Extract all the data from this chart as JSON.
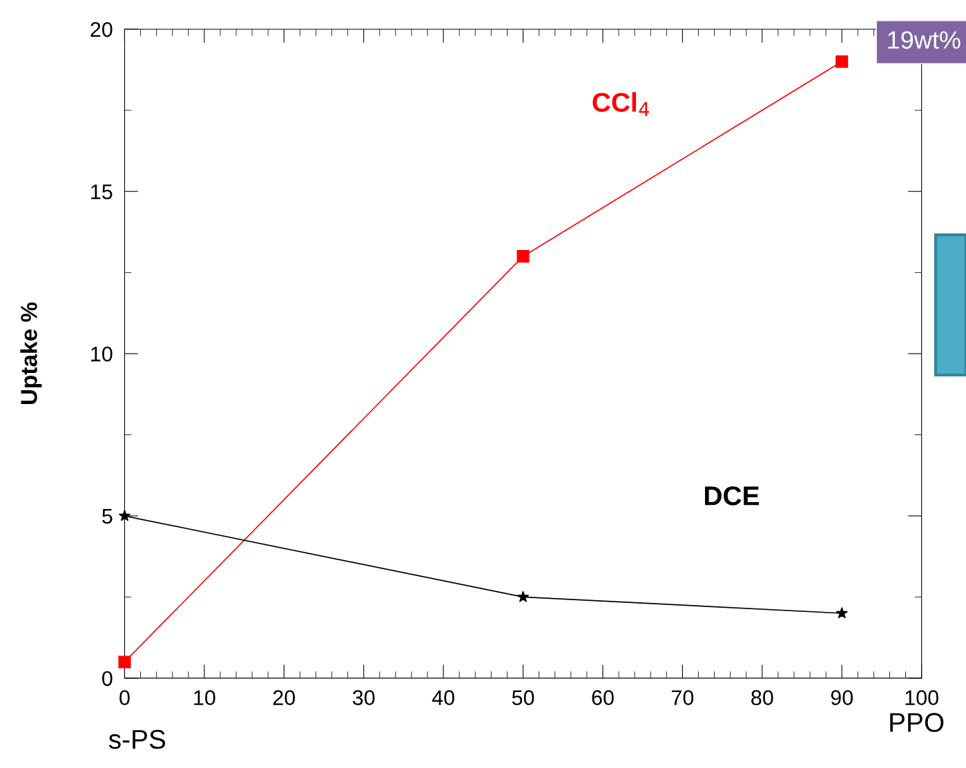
{
  "chart_data": {
    "type": "line",
    "ylabel": "Uptake %",
    "x": [
      0,
      50,
      90
    ],
    "series": [
      {
        "name": "CCl$_{4}$",
        "color": "#ff0000",
        "values": [
          0.5,
          13,
          19
        ],
        "marker": "square"
      },
      {
        "name": "DCE",
        "color": "#000000",
        "values": [
          5,
          2.5,
          2.0
        ],
        "marker": "star"
      }
    ],
    "xlim": [
      0,
      100
    ],
    "xticks": [
      0,
      10,
      20,
      30,
      40,
      50,
      60,
      70,
      80,
      90,
      100
    ],
    "ylim": [
      0,
      20
    ],
    "yticks": [
      0,
      5,
      10,
      15,
      20
    ],
    "grid": false,
    "legend": false,
    "line_style": "solid",
    "annotations": [
      "19wt%",
      "s-PS",
      "PPO"
    ]
  }
}
